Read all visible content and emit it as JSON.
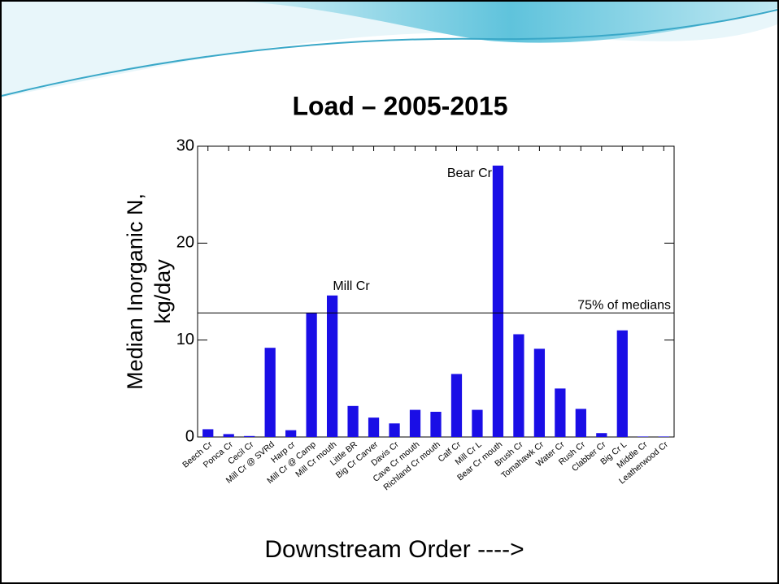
{
  "chart_data": {
    "type": "bar",
    "title": "Load – 2005-2015",
    "y_label": [
      "Median Inorganic N,",
      "kg/day"
    ],
    "x_label": "Downstream Order  ---->",
    "categories": [
      "Beech Cr",
      "Ponca Cr",
      "Cecil Cr",
      "Mill Cr @ SVRd",
      "Harp cr",
      "Mill Cr @ Camp",
      "Mill Cr mouth",
      "Little BR",
      "Big Cr Carver",
      "Davis Cr",
      "Cave Cr mouth",
      "Richland Cr mouth",
      "Calf Cr",
      "Mill Cr L",
      "Bear Cr mouth",
      "Brush Cr",
      "Tomahawk Cr",
      "Water Cr",
      "Rush Cr",
      "Clabber Cr",
      "Big Cr L",
      "Middle Cr",
      "Leatherwood Cr"
    ],
    "values": [
      0.8,
      0.3,
      0.1,
      9.2,
      0.7,
      12.8,
      14.6,
      3.2,
      2.0,
      1.4,
      2.8,
      2.6,
      6.5,
      2.8,
      28.0,
      10.6,
      9.1,
      5.0,
      2.9,
      0.4,
      11.0,
      0.05,
      0.05
    ],
    "color": "#1a0ee6",
    "ylim": [
      0,
      30
    ],
    "yticks": [
      0,
      10,
      20,
      30
    ],
    "reference_line": {
      "value": 12.8,
      "label": "75% of medians"
    },
    "annotations": [
      "Bear Cr",
      "Mill Cr"
    ]
  }
}
